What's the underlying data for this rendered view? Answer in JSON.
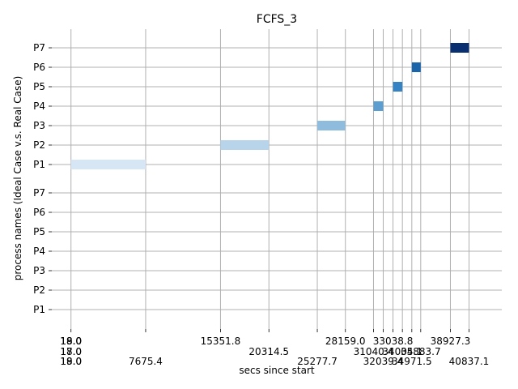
{
  "chart_data": {
    "type": "gantt",
    "title": "FCFS_3",
    "xlabel": "secs since start",
    "ylabel": "process names (Ideal Case v.s. Real Case)",
    "grid": true,
    "x_tick_values": [
      18.0,
      7675.4,
      15351.8,
      20314.5,
      25277.7,
      28159.0,
      31040.4,
      32039.4,
      33038.8,
      34004.1,
      34971.5,
      35883.7,
      38927.3,
      40837.1
    ],
    "x_tick_labels": [
      {
        "value": 19.0,
        "text": "19.0",
        "row": 1
      },
      {
        "value": 18.0,
        "text": "18.0",
        "row": 1
      },
      {
        "value": 18.0,
        "text": "18.0",
        "row": 1
      },
      {
        "value": 17.0,
        "text": "17.0",
        "row": 2
      },
      {
        "value": 18.0,
        "text": "18.0",
        "row": 2
      },
      {
        "value": 19.0,
        "text": "19.0",
        "row": 3
      },
      {
        "value": 18.0,
        "text": "18.0",
        "row": 4
      },
      {
        "value": 7675.4,
        "text": "7675.4",
        "row": 4
      },
      {
        "value": 15351.8,
        "text": "15351.8",
        "row": 1
      },
      {
        "value": 20314.5,
        "text": "20314.5",
        "row": 2
      },
      {
        "value": 25277.7,
        "text": "25277.7",
        "row": 3
      },
      {
        "value": 28159.0,
        "text": "28159.0",
        "row": 1
      },
      {
        "value": 31040.4,
        "text": "31040.4",
        "row": 2
      },
      {
        "value": 32039.4,
        "text": "32039.4",
        "row": 3
      },
      {
        "value": 33038.8,
        "text": "33038.8",
        "row": 1
      },
      {
        "value": 34004.1,
        "text": "34004.1",
        "row": 2
      },
      {
        "value": 34971.5,
        "text": "34971.5",
        "row": 3
      },
      {
        "value": 35883.7,
        "text": "35883.7",
        "row": 2
      },
      {
        "value": 38927.3,
        "text": "38927.3",
        "row": 1
      },
      {
        "value": 40837.1,
        "text": "40837.1",
        "row": 3
      }
    ],
    "xlim": [
      -1950,
      44200
    ],
    "rows": [
      {
        "label": "P1",
        "group": "ideal"
      },
      {
        "label": "P2",
        "group": "ideal"
      },
      {
        "label": "P3",
        "group": "ideal"
      },
      {
        "label": "P4",
        "group": "ideal"
      },
      {
        "label": "P5",
        "group": "ideal"
      },
      {
        "label": "P6",
        "group": "ideal"
      },
      {
        "label": "P7",
        "group": "ideal"
      },
      {
        "label": "P1",
        "group": "real"
      },
      {
        "label": "P2",
        "group": "real"
      },
      {
        "label": "P3",
        "group": "real"
      },
      {
        "label": "P4",
        "group": "real"
      },
      {
        "label": "P5",
        "group": "real"
      },
      {
        "label": "P6",
        "group": "real"
      },
      {
        "label": "P7",
        "group": "real"
      }
    ],
    "bars": [
      {
        "process": "P1",
        "start": 18.0,
        "end": 7675.4,
        "color": "#d7e6f5"
      },
      {
        "process": "P2",
        "start": 15351.8,
        "end": 20314.5,
        "color": "#b7d4ea"
      },
      {
        "process": "P3",
        "start": 25277.7,
        "end": 28159.0,
        "color": "#8fbcdd"
      },
      {
        "process": "P4",
        "start": 31040.4,
        "end": 32039.4,
        "color": "#5b9ecf"
      },
      {
        "process": "P5",
        "start": 33038.8,
        "end": 34004.1,
        "color": "#3583c2"
      },
      {
        "process": "P6",
        "start": 34971.5,
        "end": 35883.7,
        "color": "#1a64aa"
      },
      {
        "process": "P7",
        "start": 38927.3,
        "end": 40837.1,
        "color": "#083070"
      }
    ]
  }
}
